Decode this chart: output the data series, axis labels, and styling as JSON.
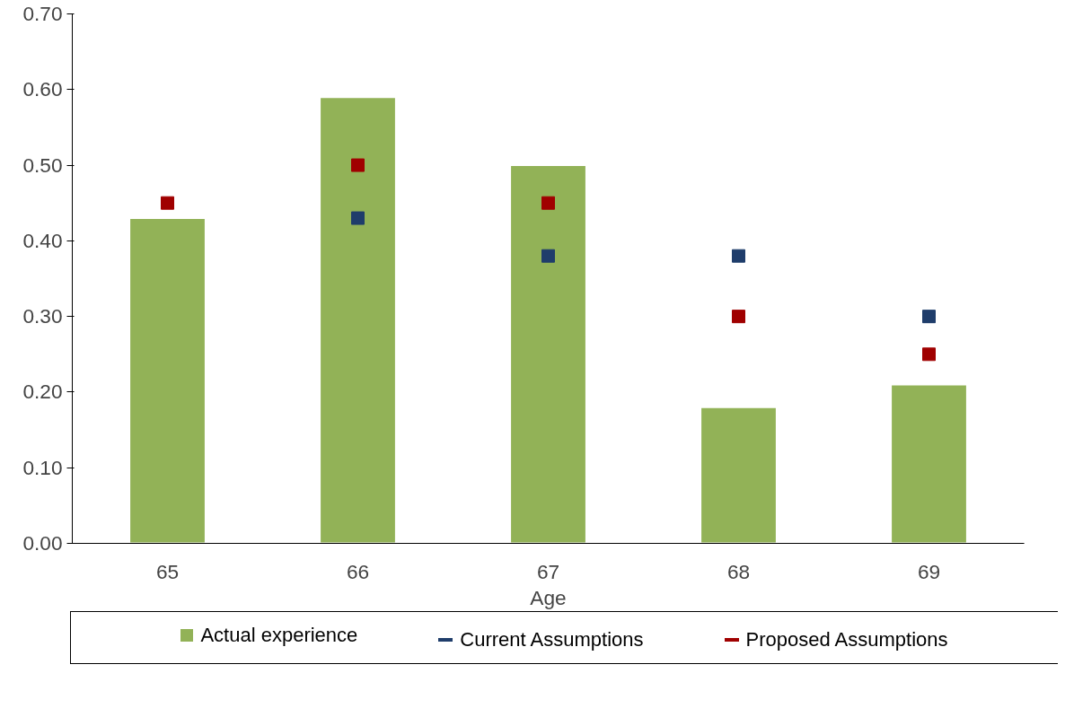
{
  "chart_data": {
    "type": "bar",
    "xlabel": "Age",
    "categories": [
      "65",
      "66",
      "67",
      "68",
      "69"
    ],
    "series": [
      {
        "name": "Actual experience",
        "color": "#92b257",
        "values": [
          0.43,
          0.59,
          0.5,
          0.18,
          0.21
        ]
      },
      {
        "name": "Current Assumptions",
        "type": "scatter",
        "color": "#1f3d6b",
        "values": [
          null,
          0.43,
          0.38,
          0.38,
          0.3
        ]
      },
      {
        "name": "Proposed Assumptions",
        "type": "scatter",
        "color": "#a00000",
        "values": [
          0.45,
          0.5,
          0.45,
          0.3,
          0.25
        ]
      }
    ],
    "ylim": [
      0,
      0.7
    ],
    "yticks": [
      {
        "value": 0,
        "label": "0.00"
      },
      {
        "value": 0.1,
        "label": "0.10"
      },
      {
        "value": 0.2,
        "label": "0.20"
      },
      {
        "value": 0.3,
        "label": "0.30"
      },
      {
        "value": 0.4,
        "label": "0.40"
      },
      {
        "value": 0.5,
        "label": "0.50"
      },
      {
        "value": 0.6,
        "label": "0.60"
      },
      {
        "value": 0.7,
        "label": "0.70"
      }
    ],
    "grid": false,
    "legend": "bottom",
    "marker": "square"
  }
}
